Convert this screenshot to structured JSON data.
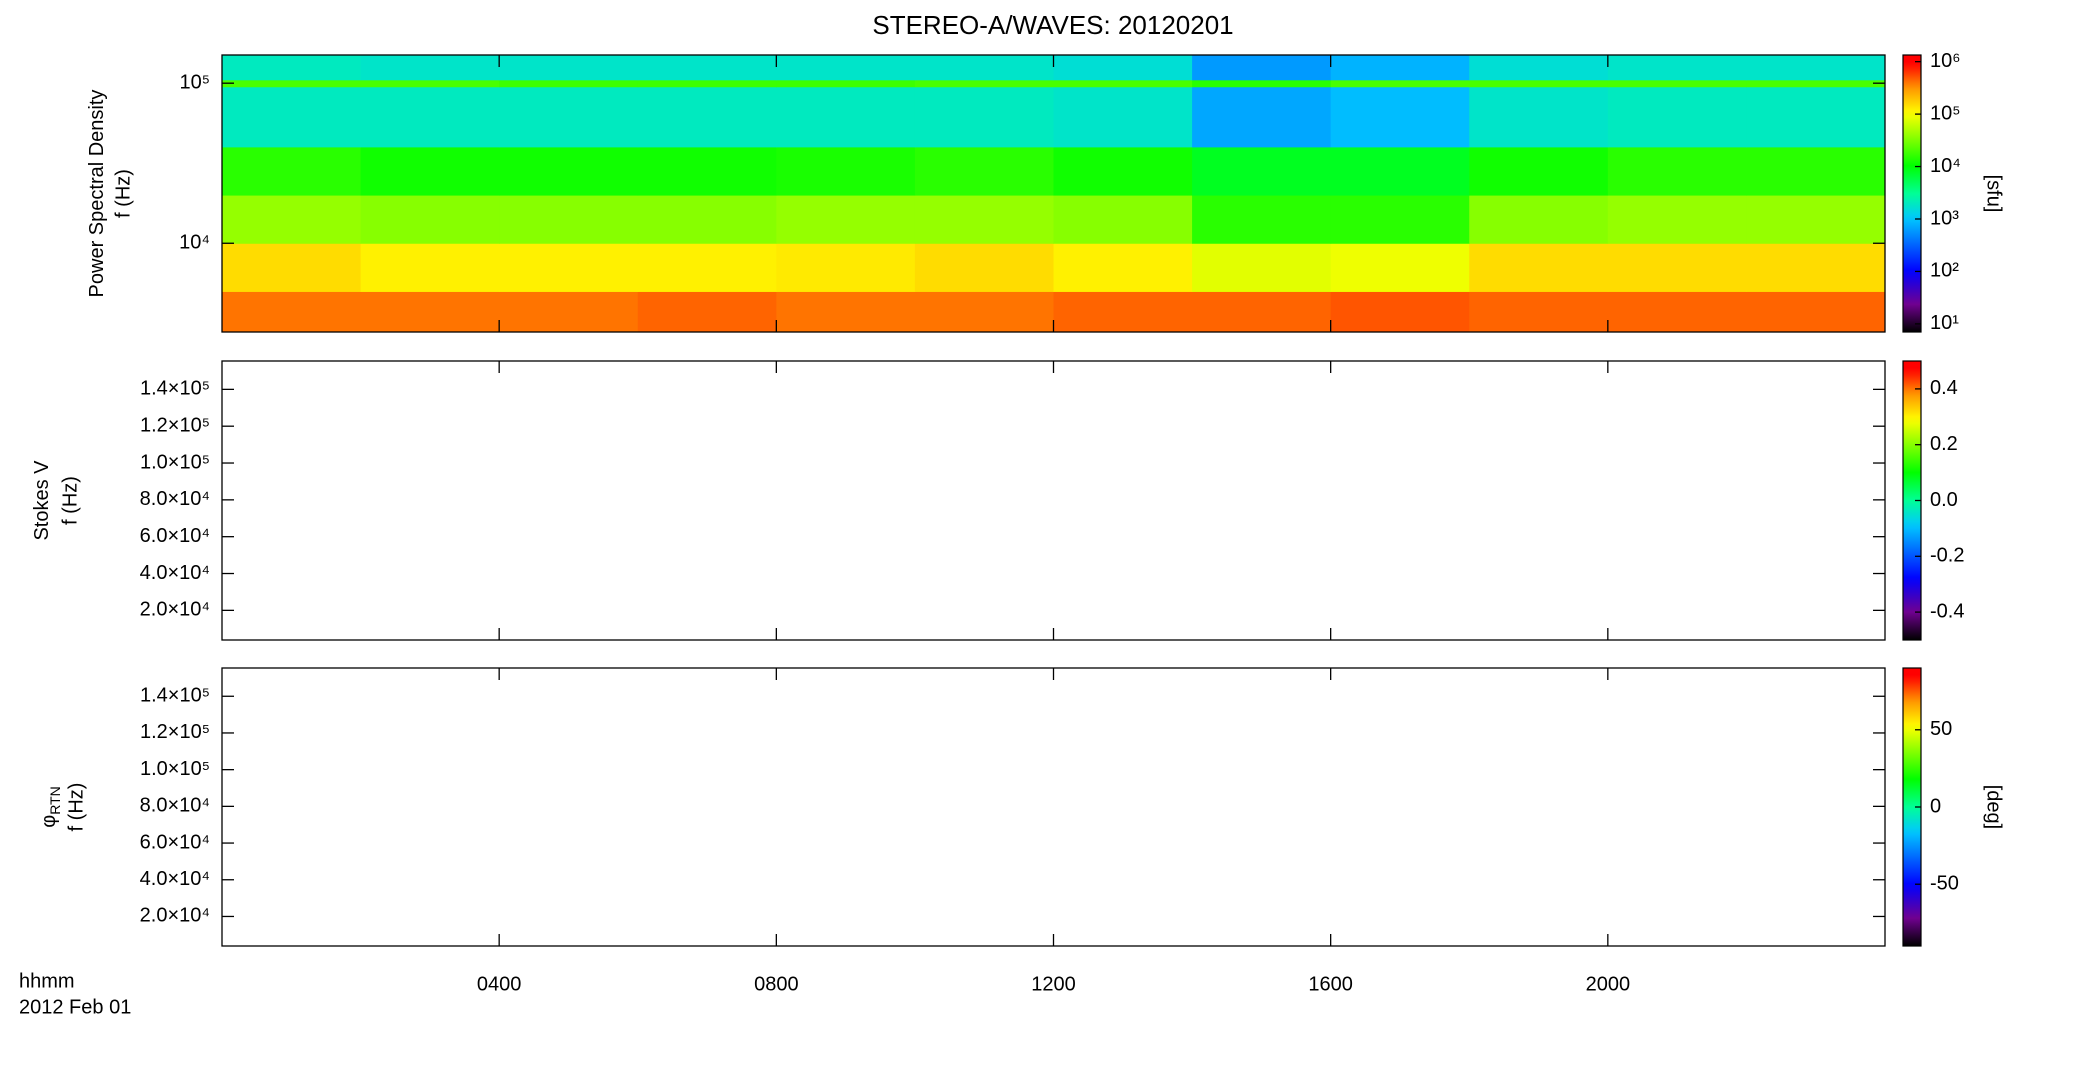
{
  "chart_data": [
    {
      "type": "heatmap",
      "title": "STEREO-A/WAVES: 20120201",
      "ylabel": "Power Spectral Density",
      "ylabel2": "f (Hz)",
      "ylog": true,
      "ylim": [
        2790,
        150000
      ],
      "yticks": [
        {
          "value": 10000,
          "label": "10⁴"
        },
        {
          "value": 100000,
          "label": "10⁵"
        }
      ],
      "xlim": [
        0,
        24
      ],
      "xbins": [
        0,
        2,
        4,
        6,
        8,
        10,
        12,
        14,
        16,
        18,
        20,
        22,
        24
      ],
      "ybins": [
        2790,
        5000,
        10000,
        20000,
        40000,
        95000,
        105000,
        150000
      ],
      "values": [
        [
          400000,
          400000,
          400000,
          450000,
          400000,
          400000,
          450000,
          450000,
          500000,
          450000,
          450000,
          450000
        ],
        [
          150000,
          120000,
          120000,
          120000,
          130000,
          150000,
          120000,
          80000,
          90000,
          150000,
          150000,
          150000
        ],
        [
          40000,
          35000,
          35000,
          35000,
          40000,
          40000,
          35000,
          15000,
          15000,
          35000,
          40000,
          40000
        ],
        [
          15000,
          12000,
          12000,
          12000,
          13000,
          15000,
          12000,
          8000,
          8000,
          12000,
          15000,
          15000
        ],
        [
          2000,
          2000,
          2000,
          2000,
          2000,
          2000,
          1800,
          700,
          900,
          1800,
          2000,
          2000
        ],
        [
          20000,
          20000,
          18000,
          18000,
          18000,
          20000,
          20000,
          15000,
          20000,
          20000,
          20000,
          20000
        ],
        [
          2000,
          1800,
          1800,
          1800,
          1800,
          1800,
          1600,
          600,
          800,
          1600,
          1800,
          1800
        ]
      ],
      "clog": true,
      "clim": [
        7,
        1340000
      ],
      "cticks": [
        {
          "value": 10,
          "label": "10¹"
        },
        {
          "value": 100,
          "label": "10²"
        },
        {
          "value": 1000,
          "label": "10³"
        },
        {
          "value": 10000,
          "label": "10⁴"
        },
        {
          "value": 100000,
          "label": "10⁵"
        },
        {
          "value": 1000000,
          "label": "10⁶"
        }
      ],
      "clabel": "[sfu]"
    },
    {
      "type": "heatmap",
      "ylabel": "Stokes V",
      "ylabel2": "f (Hz)",
      "ylim": [
        3900,
        155400
      ],
      "yticks": [
        {
          "value": 20000,
          "label": "2.0×10⁴"
        },
        {
          "value": 40000,
          "label": "4.0×10⁴"
        },
        {
          "value": 60000,
          "label": "6.0×10⁴"
        },
        {
          "value": 80000,
          "label": "8.0×10⁴"
        },
        {
          "value": 100000,
          "label": "1.0×10⁵"
        },
        {
          "value": 120000,
          "label": "1.2×10⁵"
        },
        {
          "value": 140000,
          "label": "1.4×10⁵"
        }
      ],
      "xlim": [
        0,
        24
      ],
      "clim": [
        -0.5,
        0.5
      ],
      "cticks": [
        -0.4,
        -0.2,
        {
          "value": 0,
          "label": "0.0"
        },
        0.2,
        0.4
      ]
    },
    {
      "type": "heatmap",
      "ylabel": "φ",
      "ylabel_sub": "RTN",
      "ylabel2": "f (Hz)",
      "ylim": [
        3900,
        155400
      ],
      "yticks": [
        {
          "value": 20000,
          "label": "2.0×10⁴"
        },
        {
          "value": 40000,
          "label": "4.0×10⁴"
        },
        {
          "value": 60000,
          "label": "6.0×10⁴"
        },
        {
          "value": 80000,
          "label": "8.0×10⁴"
        },
        {
          "value": 100000,
          "label": "1.0×10⁵"
        },
        {
          "value": 120000,
          "label": "1.2×10⁵"
        },
        {
          "value": 140000,
          "label": "1.4×10⁵"
        }
      ],
      "xlim": [
        0,
        24
      ],
      "xticks": [
        {
          "value": 4,
          "label": "0400"
        },
        {
          "value": 8,
          "label": "0800"
        },
        {
          "value": 12,
          "label": "1200"
        },
        {
          "value": 16,
          "label": "1600"
        },
        {
          "value": 20,
          "label": "2000"
        }
      ],
      "xlabel": "hhmm",
      "date": "2012 Feb 01",
      "clim": [
        -90,
        90
      ],
      "cticks": [
        -50,
        0,
        50
      ],
      "clabel": "[deg]"
    }
  ]
}
